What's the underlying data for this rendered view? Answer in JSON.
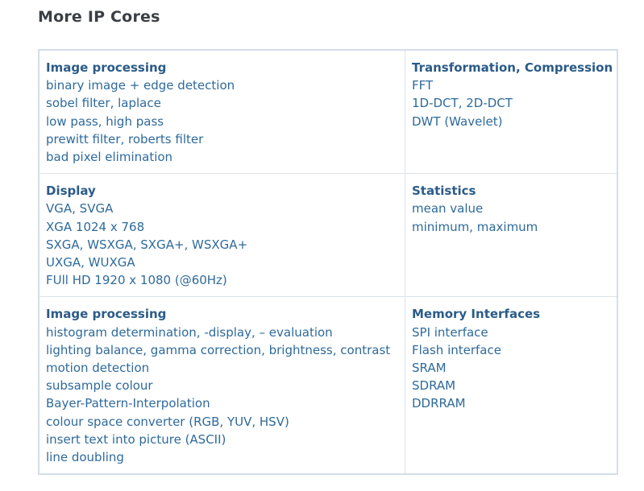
{
  "page": {
    "title": "More IP Cores"
  },
  "rows": [
    {
      "left": {
        "heading": "Image processing",
        "items": [
          "binary image + edge detection",
          "sobel filter, laplace",
          "low pass, high pass",
          "prewitt filter, roberts filter",
          "bad pixel elimination"
        ]
      },
      "right": {
        "heading": "Transformation, Compression",
        "items": [
          "FFT",
          "1D-DCT, 2D-DCT",
          "DWT (Wavelet)"
        ]
      }
    },
    {
      "left": {
        "heading": "Display",
        "items": [
          "VGA, SVGA",
          "XGA 1024 x 768",
          "SXGA, WSXGA, SXGA+, WSXGA+",
          "UXGA, WUXGA",
          "FUll HD 1920 x 1080 (@60Hz)"
        ]
      },
      "right": {
        "heading": "Statistics",
        "items": [
          "mean value",
          "minimum, maximum"
        ]
      }
    },
    {
      "left": {
        "heading": "Image processing",
        "items": [
          "histogram determination, -display, – evaluation",
          "lighting balance, gamma correction, brightness, contrast",
          "motion detection",
          "subsample colour",
          "Bayer-Pattern-Interpolation",
          "colour space converter (RGB, YUV, HSV)",
          "insert text into picture (ASCII)",
          "line doubling"
        ]
      },
      "right": {
        "heading": "Memory Interfaces",
        "items": [
          "SPI interface",
          "Flash interface",
          "SRAM",
          "SDRAM",
          "DDRRAM"
        ]
      }
    }
  ],
  "colors": {
    "heading": "#2b5b88",
    "text": "#2e6a9b",
    "title": "#3b3f44",
    "border": "#d5dde8"
  }
}
